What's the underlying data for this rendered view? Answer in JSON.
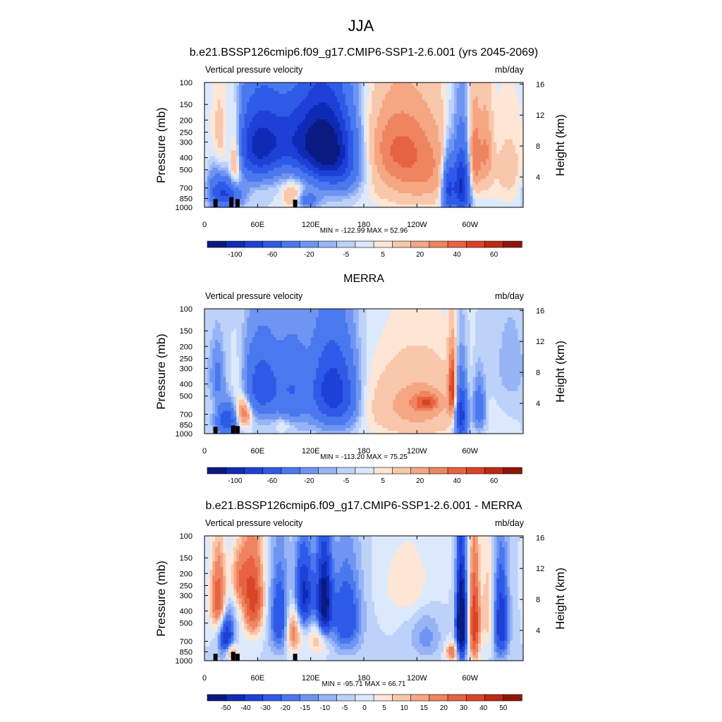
{
  "figure": {
    "title": "JJA"
  },
  "chart_data": [
    {
      "type": "heatmap",
      "title": "b.e21.BSSP126cmip6.f09_g17.CMIP6-SSP1-2.6.001 (yrs 2045-2069)",
      "left_label": "Vertical pressure velocity",
      "right_label": "mb/day",
      "ylabel": "Pressure (mb)",
      "ylabel_right": "Height (km)",
      "xlabel": "",
      "x_ticks": [
        "0",
        "60E",
        "120E",
        "180",
        "120W",
        "60W"
      ],
      "x_tick_values": [
        0,
        60,
        120,
        180,
        240,
        300
      ],
      "xlim": [
        0,
        360
      ],
      "y_ticks": [
        "100",
        "150",
        "200",
        "250",
        "300",
        "400",
        "500",
        "700",
        "850",
        "1000"
      ],
      "y_tick_values": [
        100,
        150,
        200,
        250,
        300,
        400,
        500,
        700,
        850,
        1000
      ],
      "ylim": [
        1000,
        100
      ],
      "y_right_ticks": [
        "4",
        "8",
        "12",
        "16"
      ],
      "y_right_values": [
        4,
        8,
        12,
        16
      ],
      "stats_text": "MIN = -122.99  MAX =  52.96",
      "min": -122.99,
      "max": 52.96,
      "colorbar_labels": [
        "-100",
        "-60",
        "-20",
        "-5",
        "5",
        "20",
        "40",
        "60"
      ],
      "colorbar_levels": [
        -120,
        -100,
        -80,
        -60,
        -40,
        -20,
        -10,
        -5,
        0,
        5,
        10,
        20,
        30,
        40,
        50,
        60,
        80
      ],
      "colorbar_colors": [
        "#0a1a80",
        "#0f2bb5",
        "#1e40d6",
        "#2e5ae8",
        "#4a78ee",
        "#6f95f2",
        "#97b4f6",
        "#bcd2f9",
        "#dce9fc",
        "#fde6d6",
        "#f9c7ac",
        "#f5a683",
        "#ef8460",
        "#e76240",
        "#d94426",
        "#bd2a14",
        "#8e1608"
      ],
      "blobs": [
        {
          "lon": 60,
          "p": 330,
          "sx": 18,
          "sy": 170,
          "v": -75
        },
        {
          "lon": 135,
          "p": 320,
          "sx": 20,
          "sy": 190,
          "v": -90
        },
        {
          "lon": 100,
          "p": 280,
          "sx": 25,
          "sy": 140,
          "v": -55
        },
        {
          "lon": 155,
          "p": 450,
          "sx": 18,
          "sy": 220,
          "v": -40
        },
        {
          "lon": 240,
          "p": 500,
          "sx": 40,
          "sy": 300,
          "v": 32
        },
        {
          "lon": 215,
          "p": 300,
          "sx": 25,
          "sy": 160,
          "v": 20
        },
        {
          "lon": 290,
          "p": 650,
          "sx": 7,
          "sy": 300,
          "v": -95
        },
        {
          "lon": 275,
          "p": 700,
          "sx": 5,
          "sy": 260,
          "v": -70
        },
        {
          "lon": 305,
          "p": 400,
          "sx": 5,
          "sy": 230,
          "v": 35
        },
        {
          "lon": 318,
          "p": 350,
          "sx": 5,
          "sy": 200,
          "v": 25
        },
        {
          "lon": 35,
          "p": 420,
          "sx": 5,
          "sy": 200,
          "v": 40
        },
        {
          "lon": 18,
          "p": 300,
          "sx": 7,
          "sy": 170,
          "v": 20
        },
        {
          "lon": 25,
          "p": 780,
          "sx": 12,
          "sy": 140,
          "v": -60
        },
        {
          "lon": 100,
          "p": 820,
          "sx": 8,
          "sy": 140,
          "v": 25
        },
        {
          "lon": 115,
          "p": 880,
          "sx": 10,
          "sy": 100,
          "v": -30
        },
        {
          "lon": 12,
          "p": 620,
          "sx": 7,
          "sy": 200,
          "v": -20
        },
        {
          "lon": 345,
          "p": 500,
          "sx": 15,
          "sy": 300,
          "v": 12
        }
      ],
      "topography": [
        [
          10,
          860
        ],
        [
          28,
          830
        ],
        [
          35,
          860
        ],
        [
          100,
          870
        ]
      ]
    },
    {
      "type": "heatmap",
      "title": "MERRA",
      "left_label": "Vertical pressure velocity",
      "right_label": "mb/day",
      "ylabel": "Pressure (mb)",
      "ylabel_right": "Height (km)",
      "xlabel": "",
      "x_ticks": [
        "0",
        "60E",
        "120E",
        "180",
        "120W",
        "60W"
      ],
      "x_tick_values": [
        0,
        60,
        120,
        180,
        240,
        300
      ],
      "xlim": [
        0,
        360
      ],
      "y_ticks": [
        "100",
        "150",
        "200",
        "250",
        "300",
        "400",
        "500",
        "700",
        "850",
        "1000"
      ],
      "y_tick_values": [
        100,
        150,
        200,
        250,
        300,
        400,
        500,
        700,
        850,
        1000
      ],
      "ylim": [
        1000,
        100
      ],
      "y_right_ticks": [
        "4",
        "8",
        "12",
        "16"
      ],
      "y_right_values": [
        4,
        8,
        12,
        16
      ],
      "stats_text": "MIN = -113.20  MAX =  75.25",
      "min": -113.2,
      "max": 75.25,
      "colorbar_labels": [
        "-100",
        "-60",
        "-20",
        "-5",
        "5",
        "20",
        "40",
        "60"
      ],
      "colorbar_levels": [
        -120,
        -100,
        -80,
        -60,
        -40,
        -20,
        -10,
        -5,
        0,
        5,
        10,
        20,
        30,
        40,
        50,
        60,
        80
      ],
      "colorbar_colors": [
        "#0a1a80",
        "#0f2bb5",
        "#1e40d6",
        "#2e5ae8",
        "#4a78ee",
        "#6f95f2",
        "#97b4f6",
        "#bcd2f9",
        "#dce9fc",
        "#fde6d6",
        "#f9c7ac",
        "#f5a683",
        "#ef8460",
        "#e76240",
        "#d94426",
        "#bd2a14",
        "#8e1608"
      ],
      "blobs": [
        {
          "lon": 65,
          "p": 420,
          "sx": 15,
          "sy": 200,
          "v": -55
        },
        {
          "lon": 140,
          "p": 450,
          "sx": 15,
          "sy": 250,
          "v": -65
        },
        {
          "lon": 100,
          "p": 450,
          "sx": 12,
          "sy": 250,
          "v": -35
        },
        {
          "lon": 160,
          "p": 500,
          "sx": 12,
          "sy": 250,
          "v": -30
        },
        {
          "lon": 240,
          "p": 600,
          "sx": 40,
          "sy": 300,
          "v": 25
        },
        {
          "lon": 250,
          "p": 560,
          "sx": 10,
          "sy": 60,
          "v": 30
        },
        {
          "lon": 290,
          "p": 700,
          "sx": 5,
          "sy": 280,
          "v": -80
        },
        {
          "lon": 280,
          "p": 420,
          "sx": 3,
          "sy": 180,
          "v": 55
        },
        {
          "lon": 310,
          "p": 620,
          "sx": 5,
          "sy": 200,
          "v": -40
        },
        {
          "lon": 45,
          "p": 680,
          "sx": 6,
          "sy": 120,
          "v": 45
        },
        {
          "lon": 38,
          "p": 420,
          "sx": 6,
          "sy": 170,
          "v": 12
        },
        {
          "lon": 25,
          "p": 780,
          "sx": 8,
          "sy": 150,
          "v": -60
        },
        {
          "lon": 15,
          "p": 350,
          "sx": 5,
          "sy": 120,
          "v": -25
        },
        {
          "lon": 90,
          "p": 850,
          "sx": 8,
          "sy": 80,
          "v": 10
        },
        {
          "lon": 345,
          "p": 300,
          "sx": 15,
          "sy": 200,
          "v": -8
        }
      ],
      "topography": [
        [
          10,
          880
        ],
        [
          30,
          860
        ],
        [
          35,
          870
        ]
      ]
    },
    {
      "type": "heatmap",
      "title": "b.e21.BSSP126cmip6.f09_g17.CMIP6-SSP1-2.6.001 - MERRA",
      "left_label": "Vertical pressure velocity",
      "right_label": "mb/day",
      "ylabel": "Pressure (mb)",
      "ylabel_right": "Height (km)",
      "xlabel": "",
      "x_ticks": [
        "0",
        "60E",
        "120E",
        "180",
        "120W",
        "60W"
      ],
      "x_tick_values": [
        0,
        60,
        120,
        180,
        240,
        300
      ],
      "xlim": [
        0,
        360
      ],
      "y_ticks": [
        "100",
        "150",
        "200",
        "250",
        "300",
        "400",
        "500",
        "700",
        "850",
        "1000"
      ],
      "y_tick_values": [
        100,
        150,
        200,
        250,
        300,
        400,
        500,
        700,
        850,
        1000
      ],
      "ylim": [
        1000,
        100
      ],
      "y_right_ticks": [
        "4",
        "8",
        "12",
        "16"
      ],
      "y_right_values": [
        4,
        8,
        12,
        16
      ],
      "stats_text": "MIN = -95.71  MAX =  66.71",
      "min": -95.71,
      "max": 66.71,
      "colorbar_labels": [
        "-50",
        "-40",
        "-30",
        "-20",
        "-15",
        "-10",
        "-5",
        "0",
        "5",
        "10",
        "15",
        "20",
        "30",
        "40",
        "50"
      ],
      "colorbar_levels": [
        -60,
        -50,
        -40,
        -30,
        -20,
        -15,
        -10,
        -5,
        0,
        5,
        10,
        15,
        20,
        30,
        40,
        50,
        60
      ],
      "colorbar_colors": [
        "#0a1a80",
        "#0f2bb5",
        "#1e40d6",
        "#2e5ae8",
        "#4a78ee",
        "#6f95f2",
        "#97b4f6",
        "#bcd2f9",
        "#dce9fc",
        "#fde6d6",
        "#f9c7ac",
        "#f5a683",
        "#ef8460",
        "#e76240",
        "#d94426",
        "#bd2a14",
        "#8e1608"
      ],
      "blobs": [
        {
          "lon": 16,
          "p": 320,
          "sx": 6,
          "sy": 150,
          "v": 40
        },
        {
          "lon": 55,
          "p": 320,
          "sx": 8,
          "sy": 180,
          "v": 45
        },
        {
          "lon": 40,
          "p": 220,
          "sx": 7,
          "sy": 80,
          "v": 25
        },
        {
          "lon": 85,
          "p": 450,
          "sx": 8,
          "sy": 250,
          "v": -30
        },
        {
          "lon": 100,
          "p": 550,
          "sx": 6,
          "sy": 200,
          "v": 30
        },
        {
          "lon": 112,
          "p": 300,
          "sx": 8,
          "sy": 150,
          "v": -45
        },
        {
          "lon": 135,
          "p": 350,
          "sx": 6,
          "sy": 200,
          "v": -60
        },
        {
          "lon": 160,
          "p": 450,
          "sx": 12,
          "sy": 250,
          "v": -30
        },
        {
          "lon": 130,
          "p": 650,
          "sx": 8,
          "sy": 150,
          "v": 20
        },
        {
          "lon": 230,
          "p": 250,
          "sx": 20,
          "sy": 120,
          "v": 10
        },
        {
          "lon": 290,
          "p": 500,
          "sx": 4,
          "sy": 300,
          "v": -75
        },
        {
          "lon": 305,
          "p": 500,
          "sx": 4,
          "sy": 300,
          "v": 50
        },
        {
          "lon": 335,
          "p": 500,
          "sx": 6,
          "sy": 280,
          "v": -40
        },
        {
          "lon": 320,
          "p": 400,
          "sx": 5,
          "sy": 250,
          "v": 15
        },
        {
          "lon": 25,
          "p": 650,
          "sx": 6,
          "sy": 200,
          "v": -40
        },
        {
          "lon": 30,
          "p": 860,
          "sx": 5,
          "sy": 100,
          "v": 30
        },
        {
          "lon": 280,
          "p": 850,
          "sx": 5,
          "sy": 100,
          "v": 30
        },
        {
          "lon": 250,
          "p": 650,
          "sx": 12,
          "sy": 200,
          "v": -12
        }
      ],
      "topography": [
        [
          10,
          880
        ],
        [
          30,
          850
        ],
        [
          35,
          880
        ],
        [
          100,
          880
        ]
      ]
    }
  ]
}
